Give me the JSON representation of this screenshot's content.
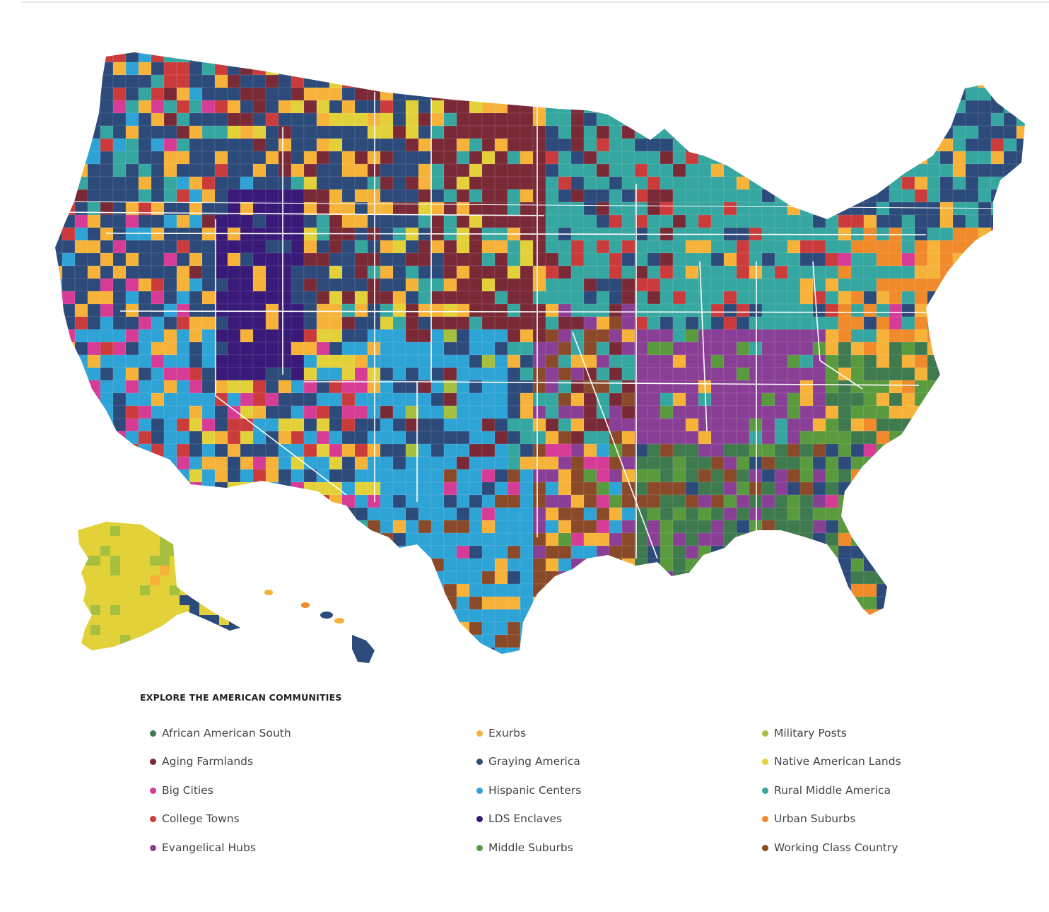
{
  "legend": {
    "title": "EXPLORE THE AMERICAN COMMUNITIES",
    "items": [
      {
        "label": "African American South",
        "color": "#3f7a4f"
      },
      {
        "label": "Aging Farmlands",
        "color": "#7a2a37"
      },
      {
        "label": "Big Cities",
        "color": "#d63c96"
      },
      {
        "label": "College Towns",
        "color": "#cc3b3b"
      },
      {
        "label": "Evangelical Hubs",
        "color": "#8a3f96"
      },
      {
        "label": "Exurbs",
        "color": "#f7b23a"
      },
      {
        "label": "Graying America",
        "color": "#2c4a7a"
      },
      {
        "label": "Hispanic Centers",
        "color": "#2ea3d6"
      },
      {
        "label": "LDS Enclaves",
        "color": "#3a1a78"
      },
      {
        "label": "Middle Suburbs",
        "color": "#5a9a3e"
      },
      {
        "label": "Military Posts",
        "color": "#a6bf3e"
      },
      {
        "label": "Native American Lands",
        "color": "#e3d13a"
      },
      {
        "label": "Rural Middle America",
        "color": "#36a6a0"
      },
      {
        "label": "Urban Suburbs",
        "color": "#f08a2a"
      },
      {
        "label": "Working Class Country",
        "color": "#8a4a2a"
      }
    ]
  }
}
